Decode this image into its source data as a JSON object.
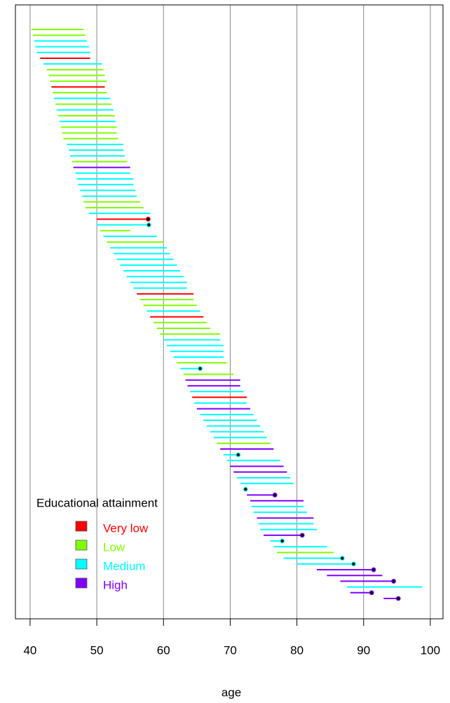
{
  "chart_data": {
    "type": "lexis",
    "xlabel": "age",
    "xlim": [
      37.8,
      101.9
    ],
    "xticks": [
      40,
      50,
      60,
      70,
      80,
      90,
      100
    ],
    "grid": true,
    "legend_title": "Educational attainment",
    "series": [
      {
        "name": "Very low",
        "color": "#ff0000"
      },
      {
        "name": "Low",
        "color": "#80ff00"
      },
      {
        "name": "Medium",
        "color": "#00ffff"
      },
      {
        "name": "High",
        "color": "#8000ff"
      }
    ],
    "start": [
      40.2,
      40.4,
      40.6,
      40.8,
      41,
      41.5,
      42,
      42.5,
      42.8,
      43,
      43.2,
      43.4,
      43.6,
      43.8,
      44,
      44.2,
      44.4,
      44.6,
      44.8,
      45,
      45.5,
      45.8,
      46,
      46.3,
      46.5,
      46.8,
      47,
      47.2,
      47.5,
      47.8,
      48,
      48.3,
      48.8,
      50,
      50,
      50.5,
      51,
      51.5,
      52,
      52.5,
      53,
      53.5,
      54,
      54.5,
      55,
      55.5,
      56,
      56.5,
      57,
      57.5,
      58,
      58.5,
      59,
      59.5,
      60,
      60.5,
      61,
      61.5,
      62,
      62.5,
      63,
      63.3,
      63.6,
      64,
      64.3,
      64.6,
      65,
      65.5,
      66,
      66.5,
      67,
      67.5,
      68,
      68.5,
      69,
      69.5,
      70,
      70.5,
      71,
      71.5,
      72,
      72.5,
      73,
      73.2,
      73.5,
      74,
      74.2,
      74.5,
      75,
      76,
      76.5,
      77,
      78,
      80,
      83,
      84.5,
      86.5,
      87.5,
      88,
      93
    ],
    "end": [
      48,
      48.3,
      48.5,
      48.8,
      49,
      49,
      50.8,
      51,
      51.2,
      51.5,
      51.2,
      51.5,
      52,
      52.2,
      52.5,
      52.7,
      52.8,
      53,
      53,
      53.2,
      54,
      54,
      54.2,
      54.5,
      55,
      55,
      55.5,
      55.5,
      55.8,
      56,
      56.5,
      57,
      58,
      57.7,
      57.8,
      55,
      59,
      60,
      60.5,
      61,
      61.5,
      62,
      62.5,
      63,
      63.5,
      63.5,
      64.5,
      64.5,
      65,
      65.5,
      66,
      66.5,
      67,
      68.5,
      68.5,
      69,
      69,
      69,
      69.5,
      65.5,
      70.5,
      71.5,
      71.5,
      72,
      72.5,
      72.5,
      73,
      73.5,
      74,
      74.5,
      75,
      75.5,
      76,
      76.5,
      71.2,
      77.5,
      78,
      78.5,
      79,
      79.5,
      72.3,
      76.7,
      81,
      81,
      81.5,
      82.5,
      82.5,
      83,
      80.8,
      77.8,
      84.5,
      85.5,
      86.8,
      88.5,
      91.5,
      92.8,
      94.5,
      98.8,
      91.2,
      95.2
    ],
    "level": [
      1,
      1,
      2,
      2,
      2,
      0,
      2,
      1,
      1,
      1,
      0,
      1,
      2,
      1,
      2,
      1,
      2,
      1,
      1,
      1,
      2,
      2,
      2,
      1,
      3,
      2,
      2,
      2,
      2,
      2,
      1,
      1,
      2,
      0,
      2,
      1,
      2,
      1,
      2,
      2,
      2,
      2,
      2,
      2,
      2,
      2,
      0,
      1,
      1,
      2,
      0,
      1,
      1,
      1,
      2,
      2,
      2,
      2,
      1,
      2,
      1,
      3,
      3,
      2,
      0,
      2,
      3,
      2,
      2,
      2,
      2,
      2,
      1,
      3,
      2,
      2,
      3,
      3,
      2,
      2,
      2,
      3,
      3,
      2,
      2,
      3,
      2,
      2,
      3,
      2,
      2,
      1,
      2,
      2,
      3,
      3,
      3,
      2,
      3,
      3
    ],
    "died": [
      false,
      false,
      false,
      false,
      false,
      false,
      false,
      false,
      false,
      false,
      false,
      false,
      false,
      false,
      false,
      false,
      false,
      false,
      false,
      false,
      false,
      false,
      false,
      false,
      false,
      false,
      false,
      false,
      false,
      false,
      false,
      false,
      false,
      true,
      true,
      false,
      false,
      false,
      false,
      false,
      false,
      false,
      false,
      false,
      false,
      false,
      false,
      false,
      false,
      false,
      false,
      false,
      false,
      false,
      false,
      false,
      false,
      false,
      false,
      true,
      false,
      false,
      false,
      false,
      false,
      false,
      false,
      false,
      false,
      false,
      false,
      false,
      false,
      false,
      true,
      false,
      false,
      false,
      false,
      false,
      true,
      true,
      false,
      false,
      false,
      false,
      false,
      false,
      true,
      true,
      false,
      false,
      true,
      true,
      true,
      false,
      true,
      false,
      true,
      true
    ]
  }
}
